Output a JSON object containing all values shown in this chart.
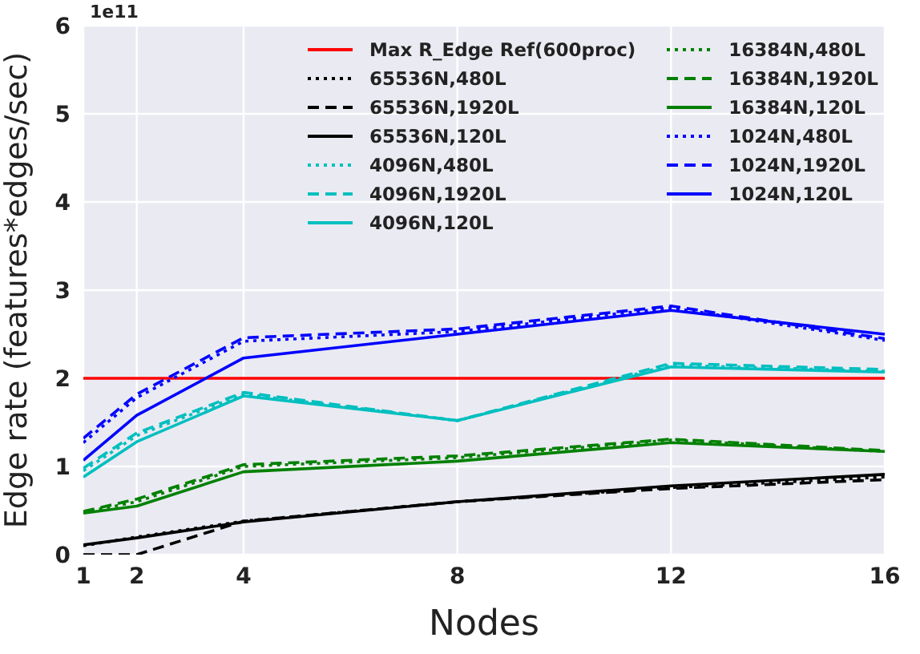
{
  "chart_data": {
    "type": "line",
    "xlabel": "Nodes",
    "ylabel": "Edge rate (features*edges/sec)",
    "annotations": [
      "1e11"
    ],
    "x": [
      1,
      2,
      4,
      8,
      12,
      16
    ],
    "xlim": [
      1,
      16
    ],
    "xticks": [
      1,
      2,
      4,
      8,
      12,
      16
    ],
    "ylim": [
      0,
      6
    ],
    "yticks": [
      0,
      1,
      2,
      3,
      4,
      5,
      6
    ],
    "grid": true,
    "legend": "top right",
    "marker": "none",
    "series": [
      {
        "name": "Max R_Edge Ref(600proc)",
        "color": "#ff0000",
        "line_style": "solid",
        "values": [
          2,
          2,
          2,
          2,
          2,
          2
        ]
      },
      {
        "name": "65536N,480L",
        "color": "#000000",
        "line_style": "dotted",
        "values": [
          0.1,
          0.2,
          0.38,
          0.6,
          0.76,
          0.88
        ]
      },
      {
        "name": "65536N,1920L",
        "color": "#000000",
        "line_style": "dashed",
        "values": [
          0,
          0,
          0.38,
          0.6,
          0.75,
          0.85
        ]
      },
      {
        "name": "65536N,120L",
        "color": "#000000",
        "line_style": "solid",
        "values": [
          0.11,
          0.19,
          0.37,
          0.6,
          0.78,
          0.91
        ]
      },
      {
        "name": "4096N,480L",
        "color": "#00bfbf",
        "line_style": "dotted",
        "values": [
          0.95,
          1.35,
          1.82,
          1.52,
          2.15,
          2.08
        ]
      },
      {
        "name": "4096N,1920L",
        "color": "#00bfbf",
        "line_style": "dashed",
        "values": [
          0.98,
          1.38,
          1.84,
          1.52,
          2.17,
          2.1
        ]
      },
      {
        "name": "4096N,120L",
        "color": "#00bfbf",
        "line_style": "solid",
        "values": [
          0.88,
          1.28,
          1.8,
          1.52,
          2.13,
          2.07
        ]
      },
      {
        "name": "16384N,480L",
        "color": "#008000",
        "line_style": "dotted",
        "values": [
          0.48,
          0.6,
          1.0,
          1.1,
          1.3,
          1.17
        ]
      },
      {
        "name": "16384N,1920L",
        "color": "#008000",
        "line_style": "dashed",
        "values": [
          0.49,
          0.63,
          1.02,
          1.12,
          1.31,
          1.18
        ]
      },
      {
        "name": "16384N,120L",
        "color": "#008000",
        "line_style": "solid",
        "values": [
          0.47,
          0.55,
          0.94,
          1.06,
          1.27,
          1.17
        ]
      },
      {
        "name": "1024N,480L",
        "color": "#0000ff",
        "line_style": "dotted",
        "values": [
          1.27,
          1.78,
          2.42,
          2.53,
          2.8,
          2.43
        ]
      },
      {
        "name": "1024N,1920L",
        "color": "#0000ff",
        "line_style": "dashed",
        "values": [
          1.32,
          1.82,
          2.46,
          2.56,
          2.82,
          2.45
        ]
      },
      {
        "name": "1024N,120L",
        "color": "#0000ff",
        "line_style": "solid",
        "values": [
          1.07,
          1.58,
          2.23,
          2.5,
          2.77,
          2.5
        ]
      }
    ]
  }
}
